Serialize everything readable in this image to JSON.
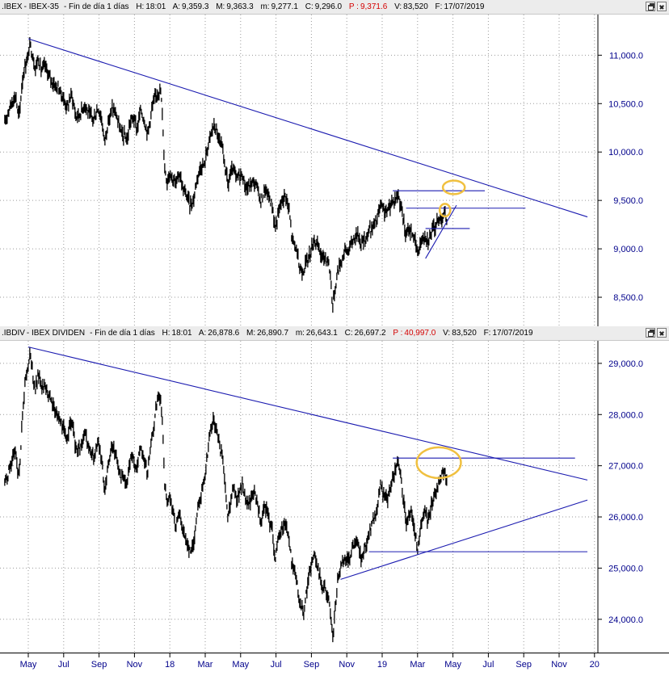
{
  "top_panel": {
    "header": {
      "symbol": ".IBEX",
      "name": "IBEX-35",
      "period": "Fin de día 1 días",
      "hora_label": "H:",
      "hora": "18:01",
      "apertura_label": "A:",
      "apertura": "9,359.3",
      "max_label": "M:",
      "max": "9,363.3",
      "min_label": "m:",
      "min": "9,277.1",
      "cierre_label": "C:",
      "cierre": "9,296.0",
      "p_label": "P :",
      "p": "9,371.6",
      "volume_label": "V:",
      "volume": "83,520",
      "fecha_label": "F:",
      "fecha": "17/07/2019"
    }
  },
  "bottom_panel": {
    "header": {
      "symbol": ".IBDIV",
      "name": "IBEX DIVIDEN",
      "period": "Fin de día 1 días",
      "hora_label": "H:",
      "hora": "18:01",
      "apertura_label": "A:",
      "apertura": "26,878.6",
      "max_label": "M:",
      "max": "26,890.7",
      "min_label": "m:",
      "min": "26,643.1",
      "cierre_label": "C:",
      "cierre": "26,697.2",
      "p_label": "P :",
      "p": "40,997.0",
      "volume_label": "V:",
      "volume": "83,520",
      "fecha_label": "F:",
      "fecha": "17/07/2019"
    }
  },
  "colors": {
    "price": "#000000",
    "trendline": "#1b1bb0",
    "highlight_circle": "#f0c040",
    "axis_text": "#00008b",
    "grid": "#9a9a9a"
  },
  "chart_data": [
    {
      "type": "ohlc",
      "title": ".IBEX - IBEX-35",
      "x_unit": "month (0 = May 2017)",
      "xlim": [
        0,
        31.6
      ],
      "ylim": [
        8200,
        11420
      ],
      "y_ticks": [
        8500,
        9000,
        9500,
        10000,
        10500,
        11000
      ],
      "y_tick_labels": [
        "8,500.0",
        "9,000.0",
        "9,500.0",
        "10,000.0",
        "10,500.0",
        "11,000.0"
      ],
      "grid": true,
      "price_path": [
        [
          -1.33,
          10280
        ],
        [
          -1.15,
          10420
        ],
        [
          -0.9,
          10530
        ],
        [
          -0.7,
          10580
        ],
        [
          -0.6,
          10410
        ],
        [
          -0.5,
          10380
        ],
        [
          -0.35,
          10720
        ],
        [
          -0.2,
          10880
        ],
        [
          0,
          10990
        ],
        [
          0.1,
          11120
        ],
        [
          0.2,
          11040
        ],
        [
          0.4,
          10860
        ],
        [
          0.55,
          10970
        ],
        [
          0.75,
          10840
        ],
        [
          0.95,
          10890
        ],
        [
          1.2,
          10770
        ],
        [
          1.5,
          10690
        ],
        [
          1.75,
          10650
        ],
        [
          2.0,
          10540
        ],
        [
          2.2,
          10460
        ],
        [
          2.45,
          10600
        ],
        [
          2.7,
          10360
        ],
        [
          2.95,
          10400
        ],
        [
          3.2,
          10500
        ],
        [
          3.45,
          10380
        ],
        [
          3.7,
          10340
        ],
        [
          3.95,
          10460
        ],
        [
          4.15,
          10330
        ],
        [
          4.3,
          10110
        ],
        [
          4.5,
          10290
        ],
        [
          4.75,
          10460
        ],
        [
          5.0,
          10370
        ],
        [
          5.25,
          10190
        ],
        [
          5.45,
          10160
        ],
        [
          5.6,
          10120
        ],
        [
          5.75,
          10310
        ],
        [
          5.95,
          10360
        ],
        [
          6.15,
          10230
        ],
        [
          6.35,
          10440
        ],
        [
          6.55,
          10330
        ],
        [
          6.75,
          10190
        ],
        [
          7.0,
          10460
        ],
        [
          7.2,
          10570
        ],
        [
          7.35,
          10640
        ],
        [
          7.5,
          10610
        ],
        [
          7.6,
          10300
        ],
        [
          7.7,
          9850
        ],
        [
          7.85,
          9700
        ],
        [
          8.0,
          9800
        ],
        [
          8.15,
          9730
        ],
        [
          8.35,
          9670
        ],
        [
          8.55,
          9790
        ],
        [
          8.75,
          9610
        ],
        [
          9.0,
          9530
        ],
        [
          9.15,
          9450
        ],
        [
          9.35,
          9510
        ],
        [
          9.55,
          9750
        ],
        [
          9.75,
          9850
        ],
        [
          9.95,
          9860
        ],
        [
          10.1,
          10020
        ],
        [
          10.3,
          10170
        ],
        [
          10.45,
          10260
        ],
        [
          10.6,
          10240
        ],
        [
          10.8,
          10110
        ],
        [
          11.0,
          10000
        ],
        [
          11.15,
          9810
        ],
        [
          11.3,
          9660
        ],
        [
          11.45,
          9780
        ],
        [
          11.6,
          9820
        ],
        [
          11.75,
          9720
        ],
        [
          11.95,
          9770
        ],
        [
          12.1,
          9760
        ],
        [
          12.3,
          9620
        ],
        [
          12.5,
          9640
        ],
        [
          12.7,
          9700
        ],
        [
          12.95,
          9630
        ],
        [
          13.15,
          9480
        ],
        [
          13.35,
          9610
        ],
        [
          13.55,
          9560
        ],
        [
          13.8,
          9440
        ],
        [
          13.95,
          9200
        ],
        [
          14.15,
          9380
        ],
        [
          14.35,
          9510
        ],
        [
          14.55,
          9560
        ],
        [
          14.75,
          9380
        ],
        [
          14.9,
          9110
        ],
        [
          15.1,
          9030
        ],
        [
          15.35,
          8790
        ],
        [
          15.55,
          8780
        ],
        [
          15.75,
          8880
        ],
        [
          15.95,
          8960
        ],
        [
          16.15,
          9100
        ],
        [
          16.35,
          9030
        ],
        [
          16.55,
          8930
        ],
        [
          16.75,
          8910
        ],
        [
          16.95,
          8880
        ],
        [
          17.1,
          8690
        ],
        [
          17.2,
          8400
        ],
        [
          17.35,
          8600
        ],
        [
          17.5,
          8790
        ],
        [
          17.7,
          8880
        ],
        [
          17.9,
          8990
        ],
        [
          18.1,
          8980
        ],
        [
          18.35,
          9090
        ],
        [
          18.6,
          9160
        ],
        [
          18.8,
          9070
        ],
        [
          19.0,
          9080
        ],
        [
          19.25,
          9190
        ],
        [
          19.5,
          9230
        ],
        [
          19.7,
          9300
        ],
        [
          19.9,
          9440
        ],
        [
          20.1,
          9390
        ],
        [
          20.3,
          9380
        ],
        [
          20.5,
          9470
        ],
        [
          20.7,
          9510
        ],
        [
          20.9,
          9560
        ],
        [
          21.05,
          9460
        ],
        [
          21.2,
          9290
        ],
        [
          21.35,
          9120
        ],
        [
          21.5,
          9200
        ],
        [
          21.7,
          9170
        ],
        [
          21.85,
          9080
        ],
        [
          22.0,
          8950
        ],
        [
          22.2,
          9080
        ],
        [
          22.4,
          9150
        ],
        [
          22.6,
          9090
        ],
        [
          22.8,
          9170
        ],
        [
          23.0,
          9240
        ],
        [
          23.2,
          9300
        ],
        [
          23.35,
          9330
        ],
        [
          23.5,
          9360
        ],
        [
          23.65,
          9310
        ]
      ],
      "lines": [
        {
          "x1": 0.0,
          "y1": 11170,
          "x2": 31.6,
          "y2": 9330
        },
        {
          "x1": 20.6,
          "y1": 9600,
          "x2": 25.8,
          "y2": 9600
        },
        {
          "x1": 21.35,
          "y1": 9420,
          "x2": 28.1,
          "y2": 9420
        },
        {
          "x1": 22.45,
          "y1": 9210,
          "x2": 24.95,
          "y2": 9210
        },
        {
          "x1": 22.45,
          "y1": 8900,
          "x2": 24.2,
          "y2": 9450
        }
      ],
      "highlights": [
        {
          "cx": 24.05,
          "cy": 9635,
          "rx": 0.62,
          "ry": 70
        },
        {
          "cx": 23.55,
          "cy": 9400,
          "rx": 0.3,
          "ry": 65
        }
      ]
    },
    {
      "type": "ohlc",
      "title": ".IBDIV - IBEX DIVIDEN",
      "x_unit": "month (0 = May 2017)",
      "xlim": [
        0,
        31.6
      ],
      "ylim": [
        23350,
        29440
      ],
      "y_ticks": [
        24000,
        25000,
        26000,
        27000,
        28000,
        29000
      ],
      "y_tick_labels": [
        "24,000.0",
        "25,000.0",
        "26,000.0",
        "27,000.0",
        "28,000.0",
        "29,000.0"
      ],
      "grid": true,
      "price_path": [
        [
          -1.33,
          26600
        ],
        [
          -1.15,
          26850
        ],
        [
          -0.9,
          27150
        ],
        [
          -0.7,
          27250
        ],
        [
          -0.6,
          26900
        ],
        [
          -0.5,
          26850
        ],
        [
          -0.35,
          27900
        ],
        [
          -0.2,
          28550
        ],
        [
          0,
          28950
        ],
        [
          0.1,
          29200
        ],
        [
          0.2,
          28900
        ],
        [
          0.4,
          28450
        ],
        [
          0.55,
          28800
        ],
        [
          0.75,
          28500
        ],
        [
          0.95,
          28600
        ],
        [
          1.2,
          28300
        ],
        [
          1.5,
          28100
        ],
        [
          1.75,
          27950
        ],
        [
          2.0,
          27700
        ],
        [
          2.2,
          27500
        ],
        [
          2.45,
          27900
        ],
        [
          2.7,
          27300
        ],
        [
          2.95,
          27400
        ],
        [
          3.2,
          27600
        ],
        [
          3.45,
          27300
        ],
        [
          3.7,
          27150
        ],
        [
          3.95,
          27450
        ],
        [
          4.15,
          27100
        ],
        [
          4.3,
          26500
        ],
        [
          4.5,
          27000
        ],
        [
          4.75,
          27400
        ],
        [
          5.0,
          27150
        ],
        [
          5.25,
          26800
        ],
        [
          5.45,
          26700
        ],
        [
          5.6,
          26650
        ],
        [
          5.75,
          27100
        ],
        [
          5.95,
          27150
        ],
        [
          6.15,
          26950
        ],
        [
          6.35,
          27400
        ],
        [
          6.55,
          27100
        ],
        [
          6.75,
          26850
        ],
        [
          7.0,
          27600
        ],
        [
          7.2,
          28050
        ],
        [
          7.35,
          28400
        ],
        [
          7.5,
          28250
        ],
        [
          7.6,
          27700
        ],
        [
          7.7,
          26700
        ],
        [
          7.85,
          26200
        ],
        [
          8.0,
          26350
        ],
        [
          8.15,
          26150
        ],
        [
          8.35,
          25800
        ],
        [
          8.55,
          26100
        ],
        [
          8.75,
          25700
        ],
        [
          9.0,
          25500
        ],
        [
          9.15,
          25300
        ],
        [
          9.35,
          25500
        ],
        [
          9.55,
          26100
        ],
        [
          9.75,
          26400
        ],
        [
          9.95,
          26700
        ],
        [
          10.1,
          27200
        ],
        [
          10.3,
          27650
        ],
        [
          10.45,
          27900
        ],
        [
          10.6,
          27750
        ],
        [
          10.8,
          27400
        ],
        [
          11.0,
          27100
        ],
        [
          11.15,
          26500
        ],
        [
          11.3,
          26000
        ],
        [
          11.45,
          26400
        ],
        [
          11.6,
          26600
        ],
        [
          11.75,
          26300
        ],
        [
          11.95,
          26500
        ],
        [
          12.1,
          26650
        ],
        [
          12.3,
          26300
        ],
        [
          12.5,
          26250
        ],
        [
          12.7,
          26500
        ],
        [
          12.95,
          26300
        ],
        [
          13.15,
          25800
        ],
        [
          13.35,
          26200
        ],
        [
          13.55,
          26050
        ],
        [
          13.8,
          25700
        ],
        [
          13.95,
          25200
        ],
        [
          14.15,
          25600
        ],
        [
          14.35,
          25800
        ],
        [
          14.55,
          25900
        ],
        [
          14.75,
          25500
        ],
        [
          14.9,
          25100
        ],
        [
          15.1,
          24900
        ],
        [
          15.35,
          24300
        ],
        [
          15.55,
          24150
        ],
        [
          15.75,
          24600
        ],
        [
          15.95,
          25000
        ],
        [
          16.15,
          25300
        ],
        [
          16.35,
          25000
        ],
        [
          16.55,
          24700
        ],
        [
          16.75,
          24600
        ],
        [
          16.95,
          24450
        ],
        [
          17.1,
          24000
        ],
        [
          17.2,
          23600
        ],
        [
          17.35,
          24200
        ],
        [
          17.5,
          24800
        ],
        [
          17.7,
          25000
        ],
        [
          17.9,
          25200
        ],
        [
          18.1,
          25100
        ],
        [
          18.35,
          25400
        ],
        [
          18.6,
          25500
        ],
        [
          18.8,
          25200
        ],
        [
          19.0,
          25350
        ],
        [
          19.25,
          25700
        ],
        [
          19.5,
          25900
        ],
        [
          19.7,
          26150
        ],
        [
          19.9,
          26600
        ],
        [
          20.1,
          26450
        ],
        [
          20.3,
          26350
        ],
        [
          20.5,
          26650
        ],
        [
          20.7,
          26850
        ],
        [
          20.9,
          27050
        ],
        [
          21.05,
          26800
        ],
        [
          21.2,
          26300
        ],
        [
          21.35,
          25900
        ],
        [
          21.5,
          26100
        ],
        [
          21.7,
          26000
        ],
        [
          21.85,
          25700
        ],
        [
          22.0,
          25350
        ],
        [
          22.2,
          25800
        ],
        [
          22.4,
          26100
        ],
        [
          22.6,
          25950
        ],
        [
          22.8,
          26250
        ],
        [
          23.0,
          26450
        ],
        [
          23.2,
          26700
        ],
        [
          23.35,
          26850
        ],
        [
          23.5,
          26900
        ],
        [
          23.65,
          26700
        ]
      ],
      "lines": [
        {
          "x1": 0.0,
          "y1": 29320,
          "x2": 31.6,
          "y2": 26720
        },
        {
          "x1": 20.6,
          "y1": 27150,
          "x2": 30.9,
          "y2": 27150
        },
        {
          "x1": 19.25,
          "y1": 25320,
          "x2": 31.6,
          "y2": 25320
        },
        {
          "x1": 17.65,
          "y1": 24780,
          "x2": 31.6,
          "y2": 26330
        }
      ],
      "highlights": [
        {
          "cx": 23.2,
          "cy": 27060,
          "rx": 1.25,
          "ry": 300
        }
      ]
    }
  ],
  "x_axis": {
    "tick_labels": [
      "May",
      "Jul",
      "Sep",
      "Nov",
      "18",
      "Mar",
      "May",
      "Jul",
      "Sep",
      "Nov",
      "19",
      "Mar",
      "May",
      "Jul",
      "Sep",
      "Nov",
      "20"
    ],
    "tick_months": [
      0,
      2,
      4,
      6,
      8,
      10,
      12,
      14,
      16,
      18,
      20,
      22,
      24,
      26,
      28,
      30,
      32
    ]
  }
}
